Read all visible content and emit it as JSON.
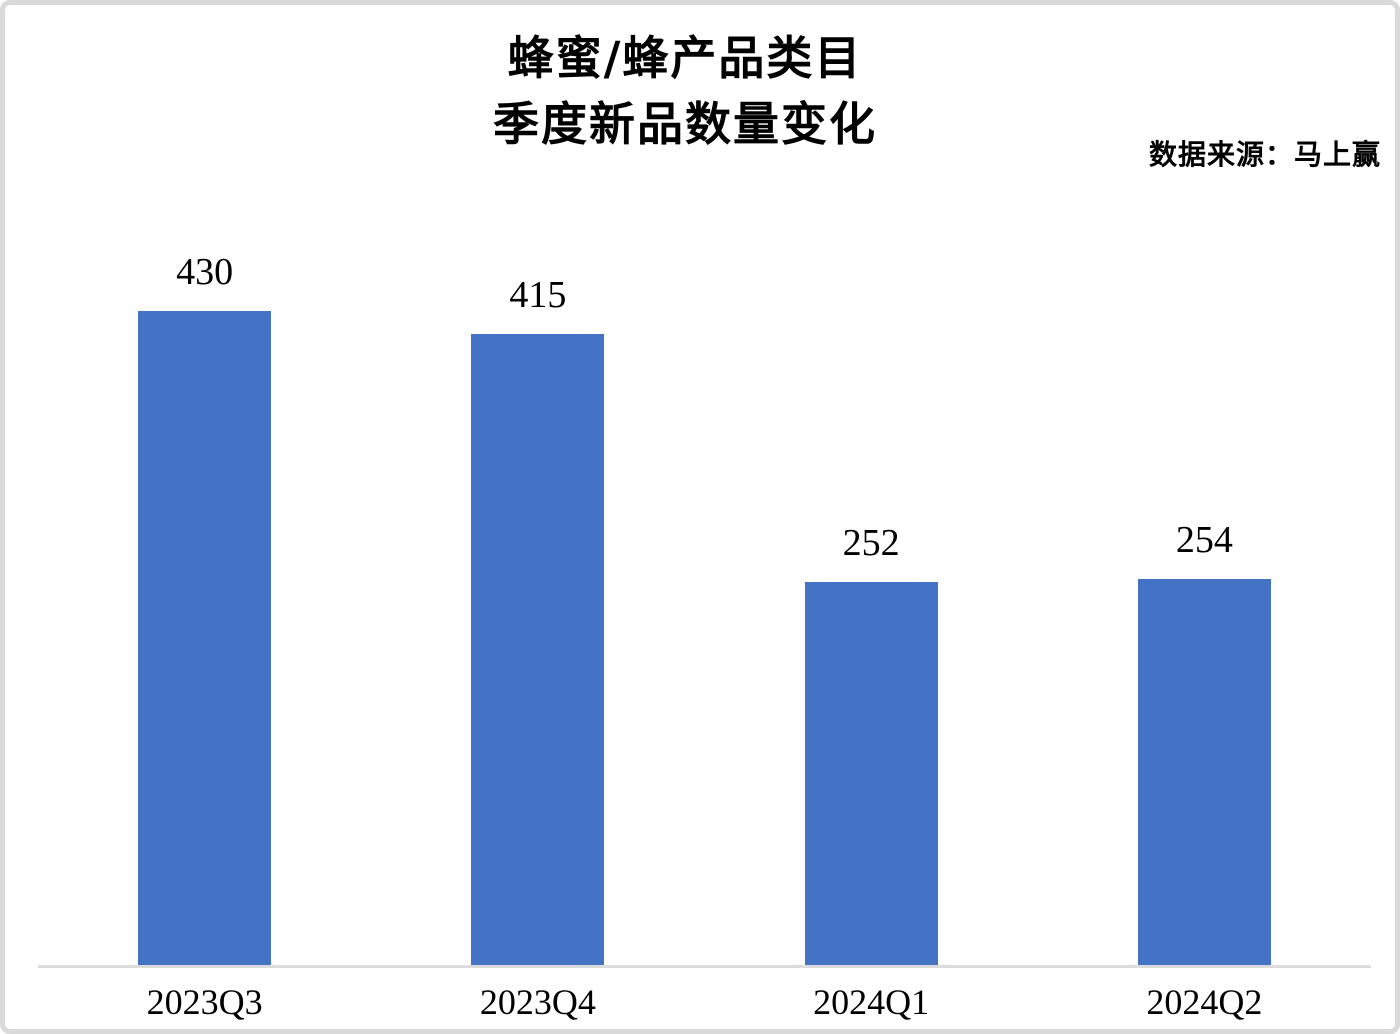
{
  "chart_data": {
    "type": "bar",
    "title_lines": [
      "蜂蜜/蜂产品类目",
      "季度新品数量变化"
    ],
    "title": "蜂蜜/蜂产品类目 季度新品数量变化",
    "source_note": "数据来源：马上赢",
    "categories": [
      "2023Q3",
      "2023Q4",
      "2024Q1",
      "2024Q2"
    ],
    "values": [
      430,
      415,
      252,
      254
    ],
    "data_labels": [
      430,
      415,
      252,
      254
    ],
    "bar_color": "#4472C4",
    "axis_line_color": "#DCDCDC",
    "text_color": "#000000",
    "ylim": [
      0,
      450
    ],
    "y_axis_visible": false,
    "grid": false,
    "legend_position": "none",
    "xlabel": "",
    "ylabel": ""
  }
}
